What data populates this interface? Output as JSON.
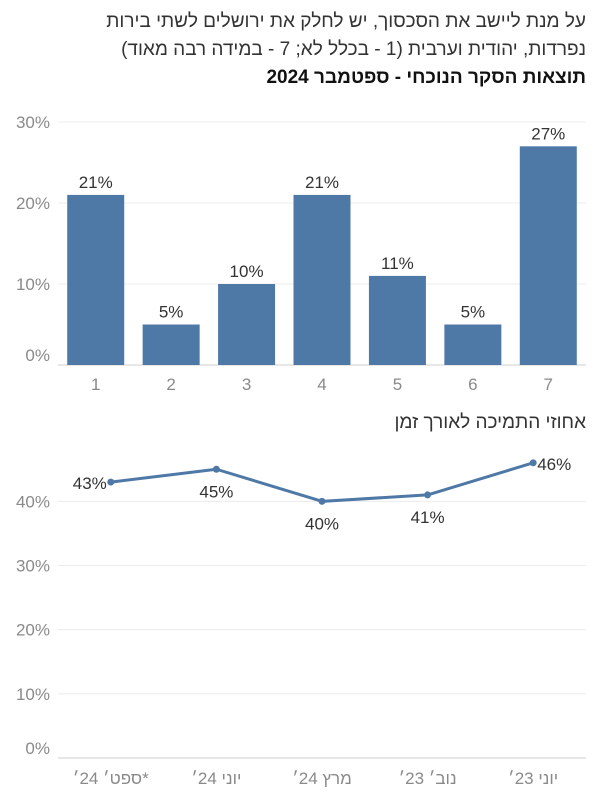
{
  "header": {
    "line1": "על מנת ליישב את הסכסוך, יש לחלק את ירושלים לשתי בירות",
    "line2": "נפרדות, יהודית וערבית (1 - בכלל לא; 7 - במידה רבה מאוד)",
    "line3": "תוצאות הסקר הנוכחי - ספטמבר 2024"
  },
  "line_section_title": "אחוזי התמיכה לאורך זמן",
  "colors": {
    "bar": "#4e79a7",
    "line": "#4e79a7",
    "grid": "#ececec",
    "axis": "#cfcfcf"
  },
  "chart_data": [
    {
      "type": "bar",
      "title": "תוצאות הסקר הנוכחי - ספטמבר 2024",
      "categories": [
        "1",
        "2",
        "3",
        "4",
        "5",
        "6",
        "7"
      ],
      "values": [
        21,
        5,
        10,
        21,
        11,
        5,
        27
      ],
      "value_labels": [
        "21%",
        "5%",
        "10%",
        "21%",
        "11%",
        "5%",
        "27%"
      ],
      "ylim": [
        0,
        30
      ],
      "yticks": [
        0,
        10,
        20,
        30
      ],
      "ytick_labels": [
        "0%",
        "10%",
        "20%",
        "30%"
      ],
      "grid": true
    },
    {
      "type": "line",
      "title": "אחוזי התמיכה לאורך זמן",
      "categories": [
        "ספט׳ 24׳*",
        "יוני 24׳",
        "מרץ 24׳",
        "נוב׳ 23׳",
        "יוני 23׳"
      ],
      "values": [
        43,
        45,
        40,
        41,
        46
      ],
      "value_labels": [
        "43%",
        "45%",
        "40%",
        "41%",
        "46%"
      ],
      "ylim": [
        0,
        48
      ],
      "yticks": [
        0,
        10,
        20,
        30,
        40
      ],
      "ytick_labels": [
        "0%",
        "10%",
        "20%",
        "30%",
        "40%"
      ],
      "grid": true
    }
  ]
}
